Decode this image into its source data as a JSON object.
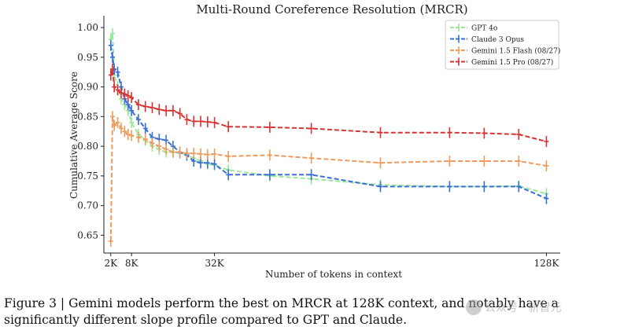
{
  "chart_data": {
    "type": "line",
    "title": "Multi-Round Coreference Resolution (MRCR)",
    "xlabel": "Number of tokens in context",
    "ylabel": "Cumulative Average Score",
    "xlim": [
      0,
      132
    ],
    "ylim": [
      0.62,
      1.02
    ],
    "xticks": [
      {
        "value": 2,
        "label": "2K"
      },
      {
        "value": 8,
        "label": "8K"
      },
      {
        "value": 32,
        "label": "32K"
      },
      {
        "value": 128,
        "label": "128K"
      }
    ],
    "yticks": [
      {
        "value": 1.0,
        "label": "1.00"
      },
      {
        "value": 0.95,
        "label": "0.95"
      },
      {
        "value": 0.9,
        "label": "0.90"
      },
      {
        "value": 0.85,
        "label": "0.85"
      },
      {
        "value": 0.8,
        "label": "0.80"
      },
      {
        "value": 0.75,
        "label": "0.75"
      },
      {
        "value": 0.7,
        "label": "0.70"
      },
      {
        "value": 0.65,
        "label": "0.65"
      }
    ],
    "legend_position": "top-right",
    "series": [
      {
        "name": "GPT 4o",
        "color": "#9be89b",
        "x": [
          2,
          2.5,
          3,
          4,
          5,
          6,
          7,
          8,
          10,
          12,
          14,
          16,
          18,
          20,
          22,
          24,
          26,
          28,
          30,
          32,
          36,
          48,
          60,
          80,
          100,
          110,
          120,
          128
        ],
        "y": [
          0.98,
          0.99,
          0.92,
          0.9,
          0.88,
          0.87,
          0.86,
          0.84,
          0.82,
          0.81,
          0.8,
          0.795,
          0.79,
          0.79,
          0.788,
          0.785,
          0.78,
          0.775,
          0.77,
          0.768,
          0.76,
          0.75,
          0.745,
          0.735,
          0.732,
          0.732,
          0.733,
          0.72
        ]
      },
      {
        "name": "Claude 3 Opus",
        "color": "#3a6fd8",
        "x": [
          2,
          2.5,
          3,
          4,
          5,
          6,
          7,
          8,
          10,
          12,
          14,
          16,
          18,
          20,
          22,
          24,
          26,
          28,
          30,
          32,
          36,
          48,
          60,
          80,
          100,
          110,
          120,
          128
        ],
        "y": [
          0.97,
          0.95,
          0.93,
          0.925,
          0.9,
          0.88,
          0.87,
          0.86,
          0.845,
          0.83,
          0.815,
          0.812,
          0.81,
          0.8,
          0.79,
          0.785,
          0.775,
          0.772,
          0.772,
          0.77,
          0.752,
          0.752,
          0.752,
          0.732,
          0.732,
          0.732,
          0.732,
          0.712
        ]
      },
      {
        "name": "Gemini 1.5 Flash (08/27)",
        "color": "#ee9a5c",
        "x": [
          2,
          2.5,
          3,
          4,
          5,
          6,
          7,
          8,
          10,
          12,
          14,
          16,
          18,
          20,
          22,
          24,
          26,
          28,
          30,
          32,
          36,
          48,
          60,
          80,
          100,
          110,
          120,
          128
        ],
        "y": [
          0.64,
          0.85,
          0.835,
          0.84,
          0.83,
          0.825,
          0.82,
          0.818,
          0.815,
          0.812,
          0.805,
          0.8,
          0.795,
          0.79,
          0.79,
          0.788,
          0.788,
          0.787,
          0.786,
          0.787,
          0.783,
          0.785,
          0.78,
          0.772,
          0.775,
          0.775,
          0.775,
          0.767
        ]
      },
      {
        "name": "Gemini 1.5 Pro (08/27)",
        "color": "#d83232",
        "x": [
          2,
          2.5,
          3,
          4,
          5,
          6,
          7,
          8,
          10,
          12,
          14,
          16,
          18,
          20,
          22,
          24,
          26,
          28,
          30,
          32,
          36,
          48,
          60,
          80,
          100,
          110,
          120,
          128
        ],
        "y": [
          0.92,
          0.93,
          0.9,
          0.895,
          0.89,
          0.888,
          0.885,
          0.882,
          0.87,
          0.867,
          0.865,
          0.862,
          0.86,
          0.86,
          0.855,
          0.845,
          0.842,
          0.842,
          0.841,
          0.84,
          0.833,
          0.832,
          0.83,
          0.823,
          0.823,
          0.822,
          0.82,
          0.808
        ]
      }
    ]
  },
  "caption": "Figure 3 | Gemini models perform the best on MRCR at 128K context, and notably have a significantly different slope profile compared to GPT and Claude.",
  "watermark": "公众号 · 新智元"
}
